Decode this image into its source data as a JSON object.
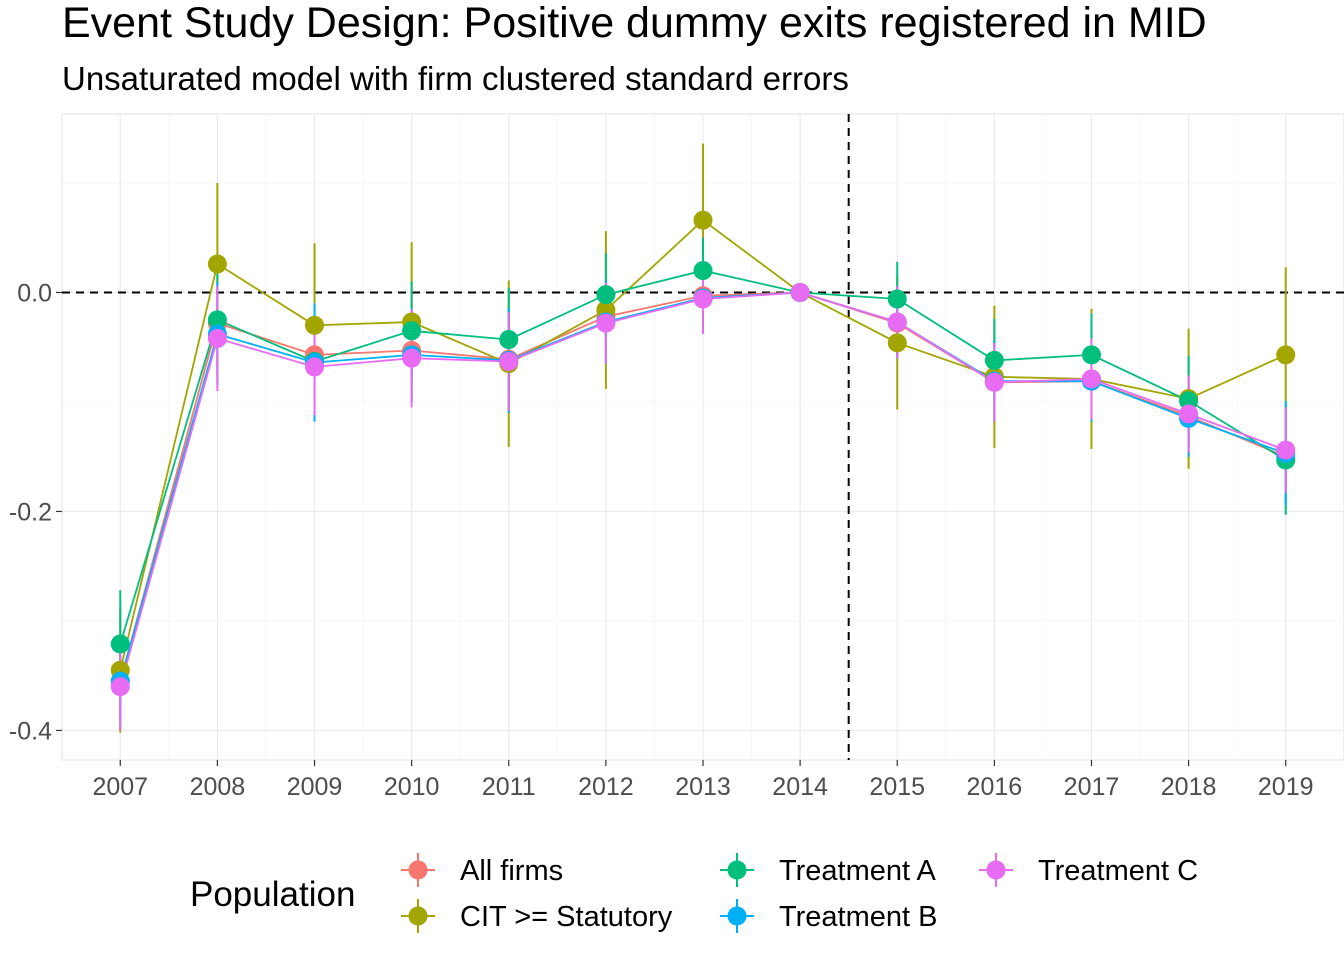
{
  "chart_data": {
    "type": "line",
    "title": "Event Study Design: Positive dummy exits registered in MID",
    "subtitle": "Unsaturated model with firm clustered standard errors",
    "x": [
      2007,
      2008,
      2009,
      2010,
      2011,
      2012,
      2013,
      2014,
      2015,
      2016,
      2017,
      2018,
      2019
    ],
    "x_tick_labels": [
      "2007",
      "2008",
      "2009",
      "2010",
      "2011",
      "2012",
      "2013",
      "2014",
      "2015",
      "2016",
      "2017",
      "2018",
      "2019"
    ],
    "y_tick_values": [
      -0.4,
      -0.2,
      0.0
    ],
    "y_tick_labels": [
      "-0.4",
      "-0.2",
      "0.0"
    ],
    "xlim": [
      2006.4,
      2019.6
    ],
    "ylim": [
      -0.427,
      0.163
    ],
    "reference_lines": {
      "horizontal_y": 0,
      "vertical_x": 2014.5,
      "style": "dashed"
    },
    "grid": true,
    "legend_title": "Population",
    "legend_position": "bottom",
    "series": [
      {
        "name": "All firms",
        "color": "#F8766D",
        "values": [
          -0.355,
          -0.028,
          -0.057,
          -0.053,
          -0.061,
          -0.022,
          -0.003,
          0.0,
          -0.028,
          -0.082,
          -0.081,
          -0.113,
          -0.15
        ],
        "lower": [
          -0.395,
          -0.08,
          -0.105,
          -0.095,
          -0.11,
          -0.06,
          -0.03,
          0.0,
          -0.06,
          -0.12,
          -0.12,
          -0.15,
          -0.19
        ],
        "upper": [
          -0.315,
          0.024,
          -0.009,
          -0.011,
          -0.012,
          0.016,
          0.024,
          0.0,
          0.004,
          -0.044,
          -0.042,
          -0.076,
          -0.11
        ]
      },
      {
        "name": "CIT >= Statutory",
        "color": "#A3A500",
        "values": [
          -0.345,
          0.026,
          -0.03,
          -0.027,
          -0.065,
          -0.016,
          0.066,
          0.0,
          -0.046,
          -0.077,
          -0.079,
          -0.097,
          -0.057
        ],
        "lower": [
          -0.402,
          -0.048,
          -0.105,
          -0.1,
          -0.141,
          -0.088,
          -0.004,
          0.0,
          -0.107,
          -0.142,
          -0.143,
          -0.161,
          -0.137
        ],
        "upper": [
          -0.288,
          0.1,
          0.045,
          0.046,
          0.011,
          0.056,
          0.136,
          0.0,
          0.015,
          -0.012,
          -0.015,
          -0.033,
          0.023
        ]
      },
      {
        "name": "Treatment A",
        "color": "#00BF7D",
        "values": [
          -0.321,
          -0.025,
          -0.063,
          -0.035,
          -0.043,
          -0.002,
          0.02,
          0.0,
          -0.006,
          -0.062,
          -0.057,
          -0.099,
          -0.153
        ],
        "lower": [
          -0.37,
          -0.075,
          -0.115,
          -0.08,
          -0.09,
          -0.04,
          -0.01,
          0.0,
          -0.04,
          -0.1,
          -0.095,
          -0.14,
          -0.203
        ],
        "upper": [
          -0.272,
          0.025,
          -0.011,
          0.01,
          0.004,
          0.036,
          0.05,
          0.0,
          0.028,
          -0.024,
          -0.019,
          -0.058,
          -0.103
        ]
      },
      {
        "name": "Treatment B",
        "color": "#00B0F6",
        "values": [
          -0.355,
          -0.038,
          -0.064,
          -0.057,
          -0.062,
          -0.027,
          -0.005,
          0.0,
          -0.027,
          -0.081,
          -0.081,
          -0.115,
          -0.147
        ],
        "lower": [
          -0.395,
          -0.085,
          -0.118,
          -0.1,
          -0.11,
          -0.065,
          -0.035,
          0.0,
          -0.06,
          -0.118,
          -0.118,
          -0.15,
          -0.195
        ],
        "upper": [
          -0.315,
          0.009,
          -0.01,
          -0.014,
          -0.014,
          0.011,
          0.025,
          0.0,
          0.006,
          -0.044,
          -0.044,
          -0.08,
          -0.099
        ]
      },
      {
        "name": "Treatment C",
        "color": "#E76BF3",
        "values": [
          -0.36,
          -0.042,
          -0.068,
          -0.06,
          -0.063,
          -0.028,
          -0.006,
          0.0,
          -0.027,
          -0.082,
          -0.079,
          -0.111,
          -0.144
        ],
        "lower": [
          -0.4,
          -0.09,
          -0.112,
          -0.105,
          -0.108,
          -0.065,
          -0.038,
          0.0,
          -0.06,
          -0.118,
          -0.116,
          -0.146,
          -0.183
        ],
        "upper": [
          -0.32,
          0.006,
          -0.024,
          -0.015,
          -0.018,
          0.009,
          0.026,
          0.0,
          0.006,
          -0.046,
          -0.042,
          -0.076,
          -0.105
        ]
      }
    ]
  }
}
